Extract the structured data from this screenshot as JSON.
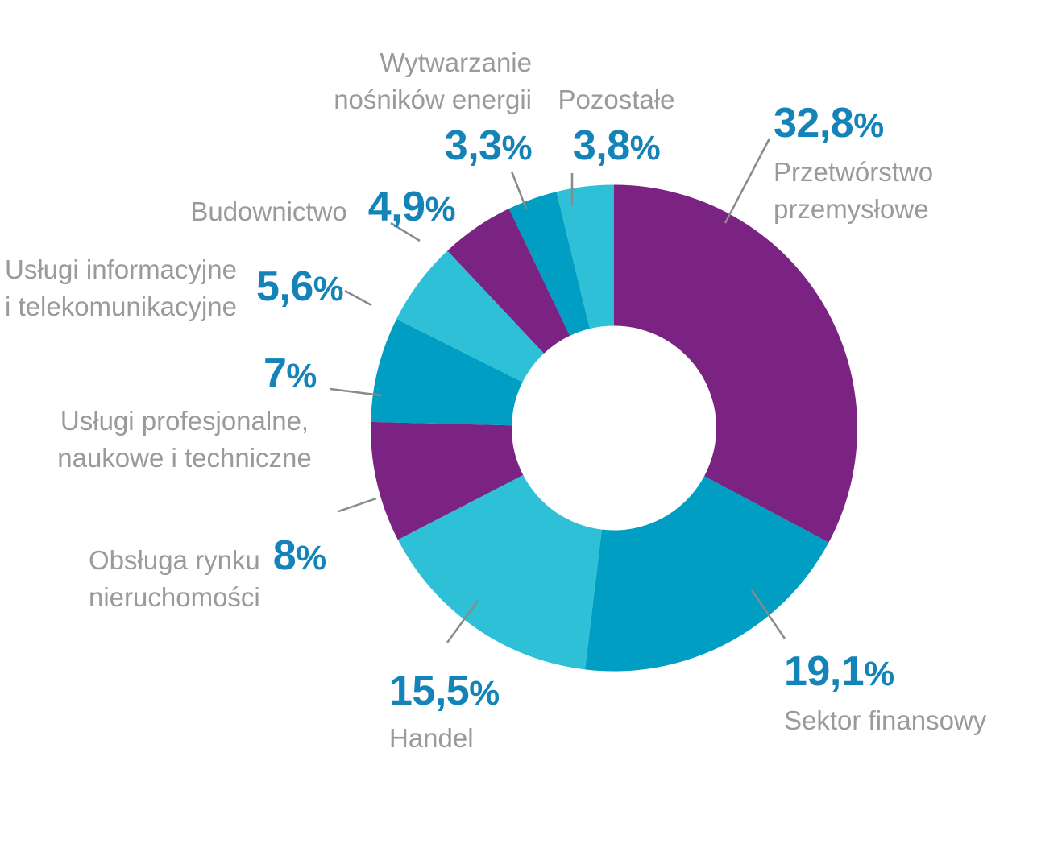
{
  "colors": {
    "purple": "#7A2383",
    "teal": "#009EC3",
    "cyan": "#2DC0D6",
    "value_blue": "#1483B8",
    "label_gray": "#9A9A9A",
    "leader_gray": "#8A8A8A",
    "background": "#FFFFFF",
    "hole": "#FFFFFF"
  },
  "chart_data": {
    "type": "pie",
    "subtype": "donut",
    "unit": "%",
    "decimal_separator": ",",
    "start_angle": "12 o'clock",
    "direction": "clockwise",
    "inner_radius_ratio": 0.42,
    "legend": "none (direct labels with leader lines)",
    "segments": [
      {
        "id": "przetworstwo-przemyslowe",
        "label": "Przetwórstwo przemysłowe",
        "label_lines": [
          "Przetwórstwo",
          "przemysłowe"
        ],
        "value": 32.8,
        "display": "32,8%",
        "color_key": "purple"
      },
      {
        "id": "sektor-finansowy",
        "label": "Sektor finansowy",
        "label_lines": [
          "Sektor finansowy"
        ],
        "value": 19.1,
        "display": "19,1%",
        "color_key": "teal"
      },
      {
        "id": "handel",
        "label": "Handel",
        "label_lines": [
          "Handel"
        ],
        "value": 15.5,
        "display": "15,5%",
        "color_key": "cyan"
      },
      {
        "id": "obsluga-rynku-nieruchomosci",
        "label": "Obsługa rynku nieruchomości",
        "label_lines": [
          "Obsługa rynku",
          "nieruchomości"
        ],
        "value": 8,
        "display": "8%",
        "color_key": "purple"
      },
      {
        "id": "uslugi-profesjonalne-naukowe-i-techniczne",
        "label": "Usługi profesjonalne, naukowe i techniczne",
        "label_lines": [
          "Usługi profesjonalne,",
          "naukowe i techniczne"
        ],
        "value": 7,
        "display": "7%",
        "color_key": "teal"
      },
      {
        "id": "uslugi-informacyjne-i-telekomunikacyjne",
        "label": "Usługi informacyjne i telekomunikacyjne",
        "label_lines": [
          "Usługi informacyjne",
          "i telekomunikacyjne"
        ],
        "value": 5.6,
        "display": "5,6%",
        "color_key": "cyan"
      },
      {
        "id": "budownictwo",
        "label": "Budownictwo",
        "label_lines": [
          "Budownictwo"
        ],
        "value": 4.9,
        "display": "4,9%",
        "color_key": "purple"
      },
      {
        "id": "wytwarzanie-nosnikow-energii",
        "label": "Wytwarzanie nośników energii",
        "label_lines": [
          "Wytwarzanie",
          "nośników energii"
        ],
        "value": 3.3,
        "display": "3,3%",
        "color_key": "teal"
      },
      {
        "id": "pozostale",
        "label": "Pozostałe",
        "label_lines": [
          "Pozostałe"
        ],
        "value": 3.8,
        "display": "3,8%",
        "color_key": "cyan"
      }
    ]
  }
}
